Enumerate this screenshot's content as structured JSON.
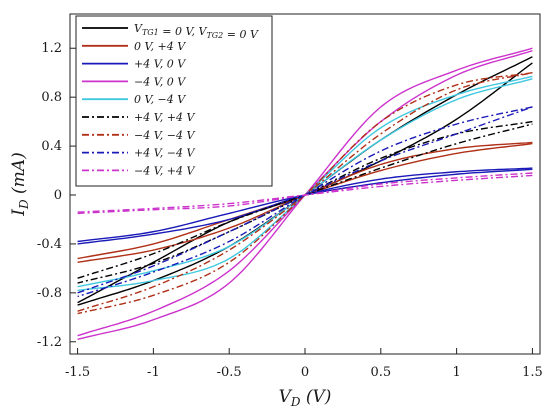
{
  "chart_data": {
    "type": "line",
    "xlabel": "V_D (V)",
    "ylabel": "I_D (mA)",
    "xlim": [
      -1.55,
      1.55
    ],
    "ylim": [
      -1.3,
      1.48
    ],
    "xticks": [
      -1.5,
      -1,
      -0.5,
      0,
      0.5,
      1,
      1.5
    ],
    "xtick_labels": [
      "-1.5",
      "-1",
      "-0.5",
      "0",
      "0.5",
      "1",
      "1.5"
    ],
    "yticks": [
      -1.2,
      -0.8,
      -0.4,
      0,
      0.4,
      0.8,
      1.2
    ],
    "ytick_labels": [
      "-1.2",
      "-0.8",
      "-0.4",
      "0",
      "0.4",
      "0.8",
      "1.2"
    ],
    "grid": false,
    "legend": "top-left",
    "series": [
      {
        "name": "V_TG1 = 0 V, V_TG2 = 0 V",
        "color": "#000000",
        "dash": "solid",
        "hyst": "high",
        "up": [
          [
            -1.5,
            -0.88
          ],
          [
            -1,
            -0.55
          ],
          [
            -0.5,
            -0.22
          ],
          [
            0,
            0
          ],
          [
            0.5,
            0.28
          ],
          [
            1,
            0.62
          ],
          [
            1.5,
            1.08
          ]
        ],
        "down": [
          [
            1.5,
            1.13
          ],
          [
            1,
            0.82
          ],
          [
            0.5,
            0.45
          ],
          [
            0,
            0
          ],
          [
            -0.5,
            -0.42
          ],
          [
            -1,
            -0.7
          ],
          [
            -1.5,
            -0.9
          ]
        ]
      },
      {
        "name": "0 V, +4 V",
        "color": "#b03018",
        "dash": "solid",
        "hyst": "low",
        "up": [
          [
            -1.5,
            -0.52
          ],
          [
            -1,
            -0.4
          ],
          [
            -0.5,
            -0.2
          ],
          [
            0,
            0
          ],
          [
            0.5,
            0.2
          ],
          [
            1,
            0.34
          ],
          [
            1.5,
            0.42
          ]
        ],
        "down": [
          [
            1.5,
            0.43
          ],
          [
            1,
            0.38
          ],
          [
            0.5,
            0.25
          ],
          [
            0,
            0
          ],
          [
            -0.5,
            -0.27
          ],
          [
            -1,
            -0.45
          ],
          [
            -1.5,
            -0.55
          ]
        ]
      },
      {
        "name": "+4 V, 0 V",
        "color": "#1a1ab8",
        "dash": "solid",
        "hyst": "low",
        "up": [
          [
            -1.5,
            -0.38
          ],
          [
            -1,
            -0.3
          ],
          [
            -0.5,
            -0.15
          ],
          [
            0,
            0
          ],
          [
            0.5,
            0.1
          ],
          [
            1,
            0.17
          ],
          [
            1.5,
            0.21
          ]
        ],
        "down": [
          [
            1.5,
            0.22
          ],
          [
            1,
            0.19
          ],
          [
            0.5,
            0.13
          ],
          [
            0,
            0
          ],
          [
            -0.5,
            -0.2
          ],
          [
            -1,
            -0.32
          ],
          [
            -1.5,
            -0.4
          ]
        ]
      },
      {
        "name": "−4 V, 0 V",
        "color": "#cc33cc",
        "dash": "solid",
        "hyst": "mid",
        "up": [
          [
            -1.5,
            -1.15
          ],
          [
            -1,
            -0.95
          ],
          [
            -0.5,
            -0.62
          ],
          [
            0,
            0
          ],
          [
            0.5,
            0.6
          ],
          [
            1,
            0.98
          ],
          [
            1.5,
            1.18
          ]
        ],
        "down": [
          [
            1.5,
            1.2
          ],
          [
            1,
            1.02
          ],
          [
            0.5,
            0.72
          ],
          [
            0,
            0
          ],
          [
            -0.5,
            -0.72
          ],
          [
            -1,
            -1.02
          ],
          [
            -1.5,
            -1.18
          ]
        ]
      },
      {
        "name": "0 V, −4 V",
        "color": "#40c8e0",
        "dash": "solid",
        "hyst": "mid",
        "up": [
          [
            -1.5,
            -0.75
          ],
          [
            -1,
            -0.62
          ],
          [
            -0.5,
            -0.42
          ],
          [
            0,
            0
          ],
          [
            0.5,
            0.45
          ],
          [
            1,
            0.78
          ],
          [
            1.5,
            0.95
          ]
        ],
        "down": [
          [
            1.5,
            0.97
          ],
          [
            1,
            0.82
          ],
          [
            0.5,
            0.55
          ],
          [
            0,
            0
          ],
          [
            -0.5,
            -0.52
          ],
          [
            -1,
            -0.7
          ],
          [
            -1.5,
            -0.78
          ]
        ]
      },
      {
        "name": "+4 V, +4 V",
        "color": "#000000",
        "dash": "dashdot",
        "hyst": "low",
        "up": [
          [
            -1.5,
            -0.68
          ],
          [
            -1,
            -0.48
          ],
          [
            -0.5,
            -0.22
          ],
          [
            0,
            0
          ],
          [
            0.5,
            0.22
          ],
          [
            1,
            0.42
          ],
          [
            1.5,
            0.58
          ]
        ],
        "down": [
          [
            1.5,
            0.6
          ],
          [
            1,
            0.5
          ],
          [
            0.5,
            0.3
          ],
          [
            0,
            0
          ],
          [
            -0.5,
            -0.3
          ],
          [
            -1,
            -0.56
          ],
          [
            -1.5,
            -0.72
          ]
        ]
      },
      {
        "name": "−4 V, −4 V",
        "color": "#b03018",
        "dash": "dashdot",
        "hyst": "mid",
        "up": [
          [
            -1.5,
            -0.95
          ],
          [
            -1,
            -0.75
          ],
          [
            -0.5,
            -0.45
          ],
          [
            0,
            0
          ],
          [
            0.5,
            0.5
          ],
          [
            1,
            0.86
          ],
          [
            1.5,
            1.0
          ]
        ],
        "down": [
          [
            1.5,
            1.0
          ],
          [
            1,
            0.9
          ],
          [
            0.5,
            0.6
          ],
          [
            0,
            0
          ],
          [
            -0.5,
            -0.55
          ],
          [
            -1,
            -0.82
          ],
          [
            -1.5,
            -0.97
          ]
        ]
      },
      {
        "name": "+4 V, −4 V",
        "color": "#1a1ab8",
        "dash": "dashdot",
        "hyst": "low",
        "up": [
          [
            -1.5,
            -0.8
          ],
          [
            -1,
            -0.58
          ],
          [
            -0.5,
            -0.3
          ],
          [
            0,
            0
          ],
          [
            0.5,
            0.28
          ],
          [
            1,
            0.5
          ],
          [
            1.5,
            0.72
          ]
        ],
        "down": [
          [
            1.5,
            0.72
          ],
          [
            1,
            0.58
          ],
          [
            0.5,
            0.36
          ],
          [
            0,
            0
          ],
          [
            -0.5,
            -0.38
          ],
          [
            -1,
            -0.63
          ],
          [
            -1.5,
            -0.83
          ]
        ]
      },
      {
        "name": "−4 V, +4 V",
        "color": "#cc33cc",
        "dash": "dashdot",
        "hyst": "low",
        "up": [
          [
            -1.5,
            -0.14
          ],
          [
            -1,
            -0.11
          ],
          [
            -0.5,
            -0.07
          ],
          [
            0,
            0
          ],
          [
            0.5,
            0.07
          ],
          [
            1,
            0.12
          ],
          [
            1.5,
            0.16
          ]
        ],
        "down": [
          [
            1.5,
            0.18
          ],
          [
            1,
            0.14
          ],
          [
            0.5,
            0.09
          ],
          [
            0,
            0
          ],
          [
            -0.5,
            -0.09
          ],
          [
            -1,
            -0.12
          ],
          [
            -1.5,
            -0.15
          ]
        ]
      }
    ]
  }
}
